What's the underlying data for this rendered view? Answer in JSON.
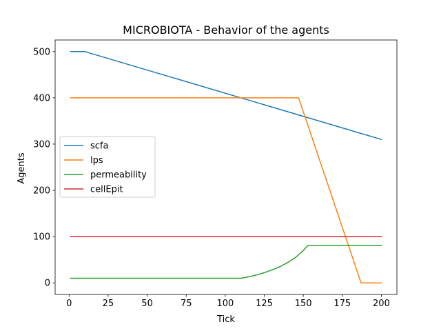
{
  "chart_data": {
    "type": "line",
    "title": "MICROBIOTA - Behavior of the agents",
    "xlabel": "Tick",
    "ylabel": "Agents",
    "xlim": [
      -8.95,
      209.95
    ],
    "ylim": [
      -25,
      525
    ],
    "xticks": [
      0,
      25,
      50,
      75,
      100,
      125,
      150,
      175,
      200
    ],
    "yticks": [
      0,
      100,
      200,
      300,
      400,
      500
    ],
    "grid": false,
    "legend_position": "center-left",
    "series": [
      {
        "name": "scfa",
        "color": "#1f77b4",
        "x": [
          1,
          10,
          200
        ],
        "y": [
          500,
          500,
          310
        ]
      },
      {
        "name": "lps",
        "color": "#ff7f0e",
        "x": [
          1,
          147,
          187,
          200
        ],
        "y": [
          400,
          400,
          0,
          0
        ]
      },
      {
        "name": "permeability",
        "color": "#2ca02c",
        "x": [
          1,
          110,
          115,
          120,
          125,
          130,
          135,
          140,
          145,
          150,
          153,
          200
        ],
        "y": [
          10,
          10,
          13,
          17,
          22,
          28,
          35,
          44,
          55,
          70,
          81,
          81
        ]
      },
      {
        "name": "cellEpit",
        "color": "#d62728",
        "x": [
          1,
          200
        ],
        "y": [
          100,
          100
        ]
      }
    ]
  }
}
